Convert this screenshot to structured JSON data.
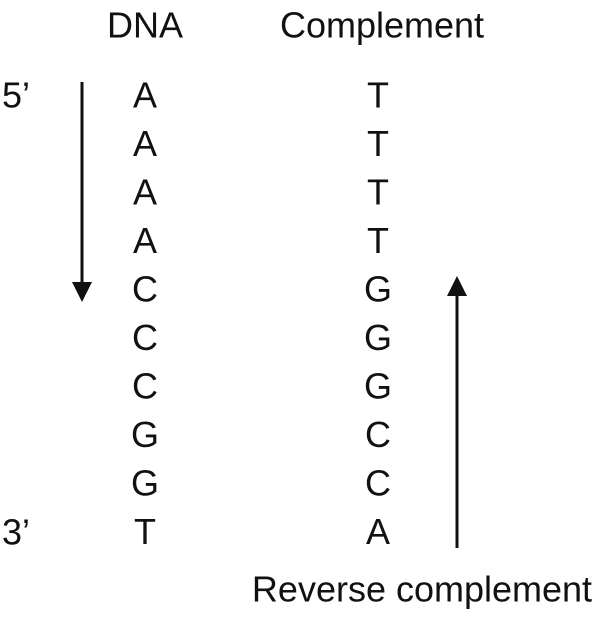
{
  "headers": {
    "dna": "DNA",
    "complement": "Complement"
  },
  "rows": [
    {
      "dna": "A",
      "complement": "T"
    },
    {
      "dna": "A",
      "complement": "T"
    },
    {
      "dna": "A",
      "complement": "T"
    },
    {
      "dna": "A",
      "complement": "T"
    },
    {
      "dna": "C",
      "complement": "G"
    },
    {
      "dna": "C",
      "complement": "G"
    },
    {
      "dna": "C",
      "complement": "G"
    },
    {
      "dna": "G",
      "complement": "C"
    },
    {
      "dna": "G",
      "complement": "C"
    },
    {
      "dna": "T",
      "complement": "A"
    }
  ],
  "labels": {
    "five_prime": "5’",
    "three_prime": "3’",
    "reverse_complement": "Reverse complement"
  }
}
